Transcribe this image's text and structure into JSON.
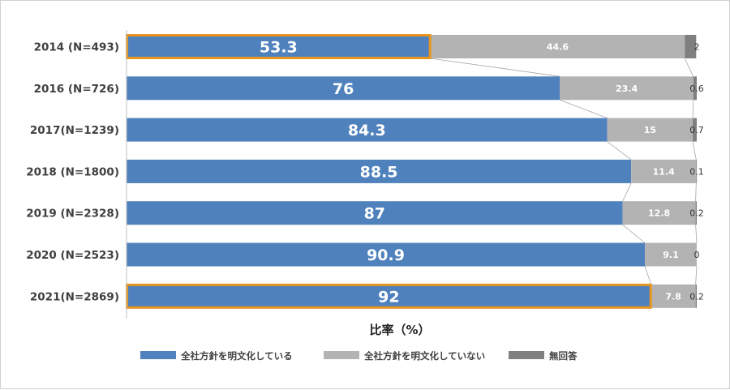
{
  "chart_data": {
    "type": "bar",
    "orientation": "horizontal",
    "stacked": true,
    "categories": [
      "2014 (N=493)",
      "2016 (N=726)",
      "2017(N=1239)",
      "2018 (N=1800)",
      "2019 (N=2328)",
      "2020 (N=2523)",
      "2021(N=2869)"
    ],
    "series": [
      {
        "name": "全社方針を明文化している",
        "color": "#4f81bd",
        "values": [
          53.3,
          76,
          84.3,
          88.5,
          87,
          90.9,
          92
        ],
        "labels": [
          "53.3",
          "76",
          "84.3",
          "88.5",
          "87",
          "90.9",
          "92"
        ]
      },
      {
        "name": "全社方針を明文化していない",
        "color": "#b3b3b3",
        "values": [
          44.6,
          23.4,
          15,
          11.4,
          12.8,
          9.1,
          7.8
        ],
        "labels": [
          "44.6",
          "23.4",
          "15",
          "11.4",
          "12.8",
          "9.1",
          "7.8"
        ]
      },
      {
        "name": "無回答",
        "color": "#7f7f7f",
        "values": [
          2,
          0.6,
          0.7,
          0.1,
          0.2,
          0,
          0.2
        ],
        "labels": [
          "2",
          "0.6",
          "0.7",
          "0.1",
          "0.2",
          "0",
          "0.2"
        ]
      }
    ],
    "highlighted_categories": [
      "2014 (N=493)",
      "2021(N=2869)"
    ],
    "highlight_color": "#e8961e",
    "xlabel": "比率（%）",
    "xlim": [
      0,
      100
    ],
    "grid": false,
    "legend_position": "bottom",
    "series_lines": true
  }
}
